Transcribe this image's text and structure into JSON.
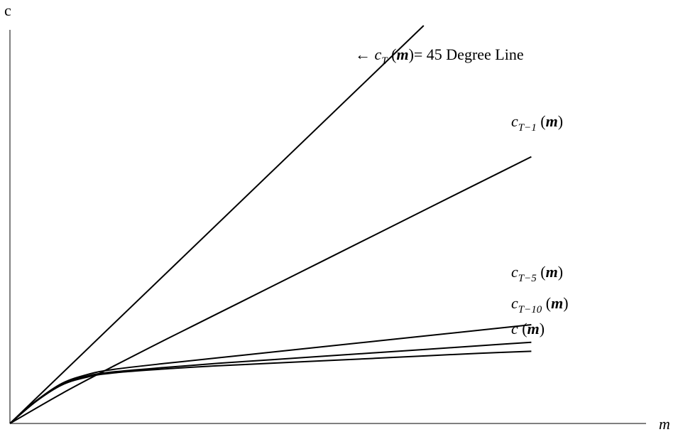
{
  "chart_data": {
    "type": "line",
    "xlabel": "m",
    "ylabel": "c",
    "grid": false,
    "series": [
      {
        "name": "c_T (m)",
        "label_parts": {
          "base": "c",
          "sub": "T",
          "arg": "(m)",
          "suffix": "= 45 Degree Line",
          "arrow": "←"
        },
        "x": [
          0,
          1
        ],
        "y": [
          0,
          1
        ]
      },
      {
        "name": "c_{T-1} (m)",
        "label_parts": {
          "base": "c",
          "sub": "T−1",
          "arg": "(m)"
        },
        "x": [
          0,
          1,
          2,
          3,
          4,
          5,
          6,
          7,
          8,
          9,
          10
        ],
        "y": [
          0,
          0.6,
          1.15,
          1.68,
          2.2,
          2.72,
          3.24,
          3.76,
          4.28,
          4.8,
          5.32
        ]
      },
      {
        "name": "c_{T-5} (m)",
        "label_parts": {
          "base": "c",
          "sub": "T−5",
          "arg": "(m)"
        },
        "x": [
          0,
          0.5,
          1,
          1.5,
          2,
          3,
          4,
          5,
          6,
          7,
          8,
          9,
          10
        ],
        "y": [
          0,
          0.45,
          0.8,
          0.98,
          1.08,
          1.2,
          1.31,
          1.42,
          1.53,
          1.64,
          1.75,
          1.86,
          1.97
        ]
      },
      {
        "name": "c_{T-10}(m)",
        "label_parts": {
          "base": "c",
          "sub": "T−10",
          "arg": "(m)"
        },
        "x": [
          0,
          0.5,
          1,
          1.5,
          2,
          3,
          4,
          5,
          6,
          7,
          8,
          9,
          10
        ],
        "y": [
          0,
          0.44,
          0.78,
          0.95,
          1.03,
          1.12,
          1.2,
          1.27,
          1.34,
          1.41,
          1.48,
          1.55,
          1.62
        ]
      },
      {
        "name": "c (m)",
        "label_parts": {
          "base": "c",
          "sub": "",
          "arg": "(m)"
        },
        "x": [
          0,
          0.5,
          1,
          1.5,
          2,
          3,
          4,
          5,
          6,
          7,
          8,
          9,
          10
        ],
        "y": [
          0,
          0.44,
          0.77,
          0.93,
          1.01,
          1.09,
          1.15,
          1.2,
          1.25,
          1.3,
          1.35,
          1.4,
          1.44
        ]
      }
    ],
    "xlim": [
      0,
      12.2
    ],
    "ylim": [
      0,
      7.85
    ]
  }
}
